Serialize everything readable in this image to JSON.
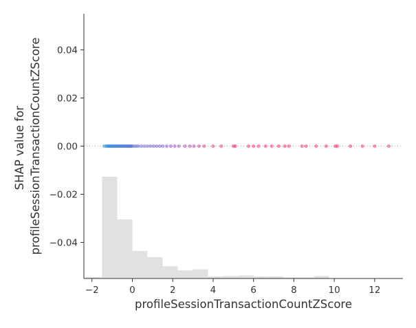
{
  "chart_data": {
    "type": "scatter",
    "title": "",
    "xlabel": "profileSessionTransactionCountZScore",
    "ylabel_lines": [
      "SHAP value for",
      "profileSessionTransactionCountZScore"
    ],
    "xlim": [
      -2.4,
      13.4
    ],
    "ylim": [
      -0.055,
      0.055
    ],
    "xticks": [
      -2,
      0,
      2,
      4,
      6,
      8,
      10,
      12
    ],
    "xtick_labels": [
      "−2",
      "0",
      "2",
      "4",
      "6",
      "8",
      "10",
      "12"
    ],
    "yticks": [
      -0.04,
      -0.02,
      0.0,
      0.02,
      0.04
    ],
    "ytick_labels": [
      "−0.04",
      "−0.02",
      "0.00",
      "0.02",
      "0.04"
    ],
    "zero_line_y": 0.0,
    "grid": false,
    "colors": {
      "low": "#1e88e5",
      "high": "#ff0d57",
      "histogram": "#d9d9d9",
      "axis": "#333333"
    },
    "histogram": {
      "bin_edges": [
        -2.3,
        -1.5,
        -0.75,
        0.0,
        0.75,
        1.5,
        2.25,
        3.0,
        3.75,
        4.5,
        5.25,
        6.0,
        6.75,
        7.5,
        8.25,
        9.0,
        9.75,
        10.5
      ],
      "relative_heights": [
        0.015,
        1.0,
        0.58,
        0.27,
        0.21,
        0.12,
        0.08,
        0.09,
        0.02,
        0.025,
        0.03,
        0.02,
        0.02,
        0.01,
        0.01,
        0.025,
        0.0
      ]
    },
    "points": [
      {
        "x": -1.4,
        "y": 0.0
      },
      {
        "x": -1.3,
        "y": 0.0
      },
      {
        "x": -1.25,
        "y": 0.0
      },
      {
        "x": -1.2,
        "y": 0.0
      },
      {
        "x": -1.15,
        "y": 0.0
      },
      {
        "x": -1.1,
        "y": 0.0
      },
      {
        "x": -1.05,
        "y": 0.0
      },
      {
        "x": -1.0,
        "y": 0.0
      },
      {
        "x": -0.95,
        "y": 0.0
      },
      {
        "x": -0.9,
        "y": 0.0
      },
      {
        "x": -0.85,
        "y": 0.0
      },
      {
        "x": -0.8,
        "y": 0.0
      },
      {
        "x": -0.75,
        "y": 0.0
      },
      {
        "x": -0.7,
        "y": 0.0
      },
      {
        "x": -0.65,
        "y": 0.0
      },
      {
        "x": -0.6,
        "y": 0.0
      },
      {
        "x": -0.55,
        "y": 0.0
      },
      {
        "x": -0.5,
        "y": 0.0
      },
      {
        "x": -0.45,
        "y": 0.0
      },
      {
        "x": -0.4,
        "y": 0.0
      },
      {
        "x": -0.35,
        "y": 0.0
      },
      {
        "x": -0.3,
        "y": 0.0
      },
      {
        "x": -0.25,
        "y": 0.0
      },
      {
        "x": -0.2,
        "y": 0.0
      },
      {
        "x": -0.15,
        "y": 0.0
      },
      {
        "x": -0.1,
        "y": 0.0
      },
      {
        "x": -0.05,
        "y": 0.0
      },
      {
        "x": 0.0,
        "y": 0.0
      },
      {
        "x": 0.1,
        "y": 0.0
      },
      {
        "x": 0.2,
        "y": 0.0
      },
      {
        "x": 0.3,
        "y": 0.0
      },
      {
        "x": 0.45,
        "y": 0.0
      },
      {
        "x": 0.6,
        "y": 0.0
      },
      {
        "x": 0.75,
        "y": 0.0
      },
      {
        "x": 0.9,
        "y": 0.0
      },
      {
        "x": 1.05,
        "y": 0.0
      },
      {
        "x": 1.2,
        "y": 0.0
      },
      {
        "x": 1.35,
        "y": 0.0
      },
      {
        "x": 1.5,
        "y": 0.0
      },
      {
        "x": 1.7,
        "y": 0.0
      },
      {
        "x": 1.9,
        "y": 0.0
      },
      {
        "x": 2.1,
        "y": 0.0
      },
      {
        "x": 2.3,
        "y": 0.0
      },
      {
        "x": 2.6,
        "y": 0.0
      },
      {
        "x": 2.85,
        "y": 0.0
      },
      {
        "x": 3.05,
        "y": 0.0
      },
      {
        "x": 3.3,
        "y": 0.0
      },
      {
        "x": 3.55,
        "y": 0.0
      },
      {
        "x": 4.0,
        "y": 0.0
      },
      {
        "x": 4.4,
        "y": 0.0
      },
      {
        "x": 5.0,
        "y": 0.0
      },
      {
        "x": 5.1,
        "y": 0.0
      },
      {
        "x": 5.75,
        "y": 0.0
      },
      {
        "x": 6.0,
        "y": 0.0
      },
      {
        "x": 6.25,
        "y": 0.0
      },
      {
        "x": 6.6,
        "y": 0.0
      },
      {
        "x": 6.9,
        "y": 0.0
      },
      {
        "x": 7.25,
        "y": 0.0
      },
      {
        "x": 7.55,
        "y": 0.0
      },
      {
        "x": 7.75,
        "y": 0.0
      },
      {
        "x": 8.4,
        "y": 0.0
      },
      {
        "x": 8.6,
        "y": 0.0
      },
      {
        "x": 9.1,
        "y": 0.0
      },
      {
        "x": 9.6,
        "y": 0.0
      },
      {
        "x": 10.05,
        "y": 0.0
      },
      {
        "x": 10.15,
        "y": 0.0
      },
      {
        "x": 10.8,
        "y": 0.0
      },
      {
        "x": 11.4,
        "y": 0.0
      },
      {
        "x": 12.0,
        "y": 0.0
      },
      {
        "x": 12.7,
        "y": 0.0
      }
    ]
  }
}
